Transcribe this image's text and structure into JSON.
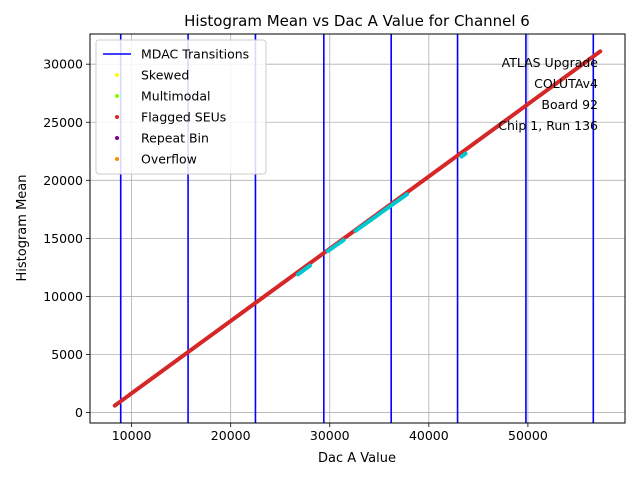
{
  "chart_data": {
    "type": "scatter",
    "title": "Histogram Mean vs Dac A Value for Channel 6",
    "xlabel": "Dac A Value",
    "ylabel": "Histogram Mean",
    "xlim": [
      5800,
      59800
    ],
    "ylim": [
      -900,
      32600
    ],
    "xticks": [
      10000,
      20000,
      30000,
      40000,
      50000
    ],
    "yticks": [
      0,
      5000,
      10000,
      15000,
      20000,
      25000,
      30000
    ],
    "grid": true,
    "legend_position": "top-left",
    "series": [
      {
        "name": "MDAC Transitions",
        "kind": "vline",
        "color": "#0000ff",
        "x": [
          8900,
          15700,
          22500,
          29400,
          36200,
          42900,
          49800,
          56600
        ]
      },
      {
        "name": "Skewed",
        "kind": "marker",
        "color": "#ffff00",
        "points": []
      },
      {
        "name": "Multimodal",
        "kind": "marker",
        "color": "#7fff00",
        "points": []
      },
      {
        "name": "Flagged SEUs",
        "kind": "marker",
        "color": "#d62728",
        "points": [
          [
            8300,
            600
          ],
          [
            57300,
            31100
          ]
        ]
      },
      {
        "name": "Repeat Bin",
        "kind": "marker",
        "color": "#800080",
        "points": []
      },
      {
        "name": "Overflow",
        "kind": "marker",
        "color": "#ff8c00",
        "points": []
      },
      {
        "name": "",
        "kind": "marker",
        "color": "#00c8d0",
        "segments": [
          [
            26800,
            11900,
            28000,
            12650
          ],
          [
            29800,
            13900,
            31400,
            14850
          ],
          [
            32600,
            15650,
            37800,
            18800
          ],
          [
            43300,
            22050,
            43700,
            22300
          ]
        ]
      }
    ],
    "annotation": [
      "ATLAS Upgrade",
      "COLUTAv4",
      "Board 92",
      "Chip 1, Run 136"
    ]
  }
}
